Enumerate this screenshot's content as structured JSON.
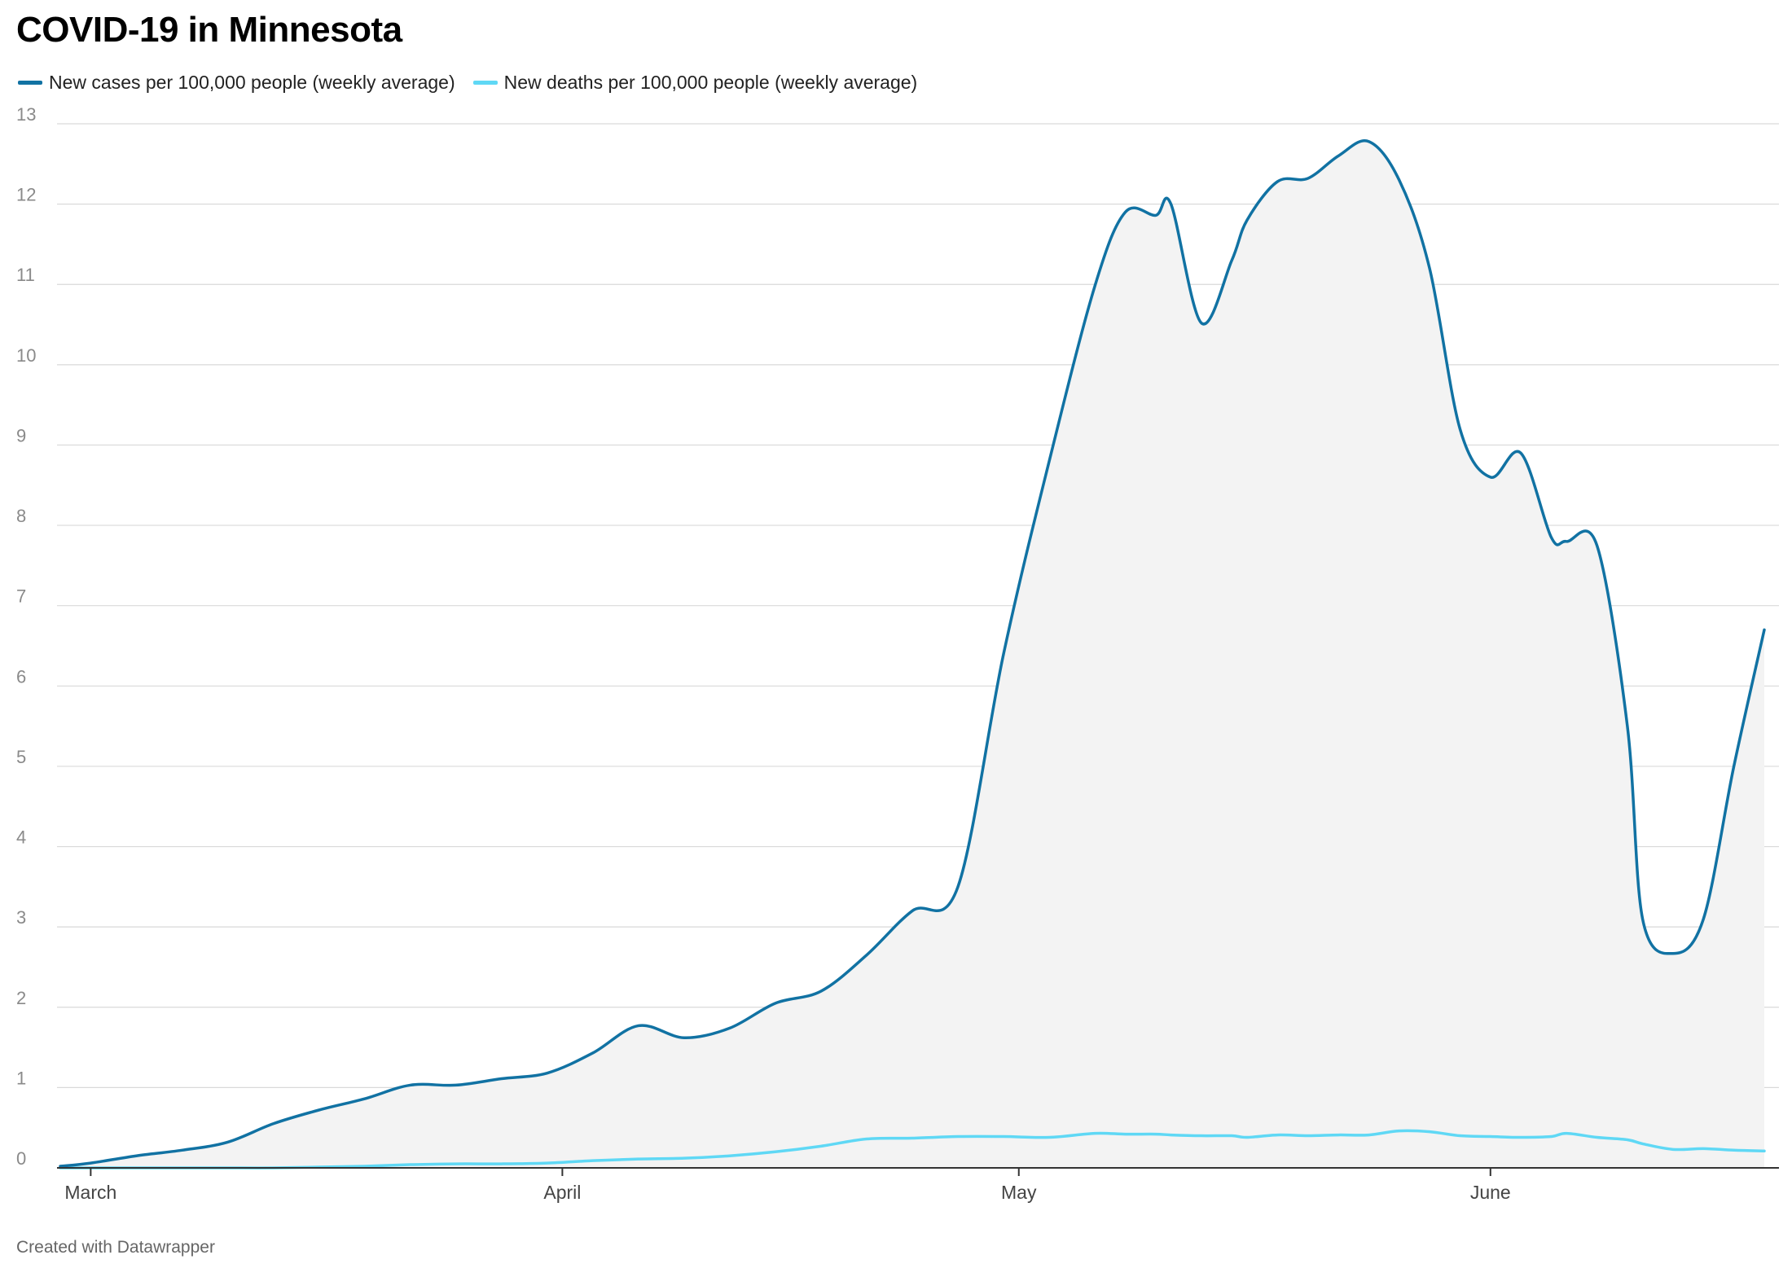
{
  "chart_data": {
    "type": "area",
    "title": "COVID-19 in Minnesota",
    "xlabel": "",
    "ylabel": "",
    "ylim": [
      0,
      13
    ],
    "yticks": [
      0,
      1,
      2,
      3,
      4,
      5,
      6,
      7,
      8,
      9,
      10,
      11,
      12,
      13
    ],
    "grid": true,
    "legend_position": "top-left",
    "xticks": [
      {
        "label": "March",
        "date": "2021-03-01"
      },
      {
        "label": "April",
        "date": "2021-04-01"
      },
      {
        "label": "May",
        "date": "2021-05-01"
      },
      {
        "label": "June",
        "date": "2021-06-01"
      }
    ],
    "x": [
      "2021-02-27",
      "2021-03-01",
      "2021-03-04",
      "2021-03-07",
      "2021-03-10",
      "2021-03-13",
      "2021-03-16",
      "2021-03-19",
      "2021-03-22",
      "2021-03-25",
      "2021-03-28",
      "2021-03-31",
      "2021-04-03",
      "2021-04-06",
      "2021-04-09",
      "2021-04-12",
      "2021-04-15",
      "2021-04-18",
      "2021-04-21",
      "2021-04-24",
      "2021-04-27",
      "2021-04-30",
      "2021-05-03",
      "2021-05-06",
      "2021-05-08",
      "2021-05-10",
      "2021-05-11",
      "2021-05-13",
      "2021-05-15",
      "2021-05-16",
      "2021-05-18",
      "2021-05-20",
      "2021-05-22",
      "2021-05-24",
      "2021-05-26",
      "2021-05-28",
      "2021-05-30",
      "2021-06-01",
      "2021-06-03",
      "2021-06-05",
      "2021-06-06",
      "2021-06-08",
      "2021-06-10",
      "2021-06-11",
      "2021-06-13",
      "2021-06-15",
      "2021-06-17",
      "2021-06-19"
    ],
    "series": [
      {
        "name": "New cases per 100,000 people (weekly average)",
        "color": "#1172a3",
        "values": [
          0.02,
          0.06,
          0.15,
          0.22,
          0.32,
          0.55,
          0.72,
          0.86,
          1.03,
          1.03,
          1.11,
          1.18,
          1.43,
          1.77,
          1.62,
          1.74,
          2.05,
          2.2,
          2.65,
          3.2,
          3.5,
          6.4,
          8.8,
          10.98,
          11.9,
          11.86,
          12.0,
          10.52,
          11.3,
          11.8,
          12.28,
          12.32,
          12.6,
          12.78,
          12.3,
          11.2,
          9.2,
          8.6,
          8.9,
          7.85,
          7.8,
          7.75,
          5.5,
          3.1,
          2.67,
          3.1,
          5.0,
          6.7
        ]
      },
      {
        "name": "New deaths per 100,000 people (weekly average)",
        "color": "#5fd8f5",
        "values": [
          0.0,
          0.0,
          0.0,
          0.0,
          0.0,
          0.0,
          0.01,
          0.02,
          0.04,
          0.05,
          0.05,
          0.06,
          0.09,
          0.11,
          0.12,
          0.15,
          0.2,
          0.27,
          0.36,
          0.37,
          0.39,
          0.39,
          0.38,
          0.43,
          0.42,
          0.42,
          0.41,
          0.4,
          0.4,
          0.38,
          0.41,
          0.4,
          0.41,
          0.41,
          0.46,
          0.45,
          0.4,
          0.39,
          0.38,
          0.39,
          0.43,
          0.38,
          0.35,
          0.3,
          0.23,
          0.24,
          0.22,
          0.21
        ]
      }
    ]
  },
  "footer": "Created with Datawrapper"
}
